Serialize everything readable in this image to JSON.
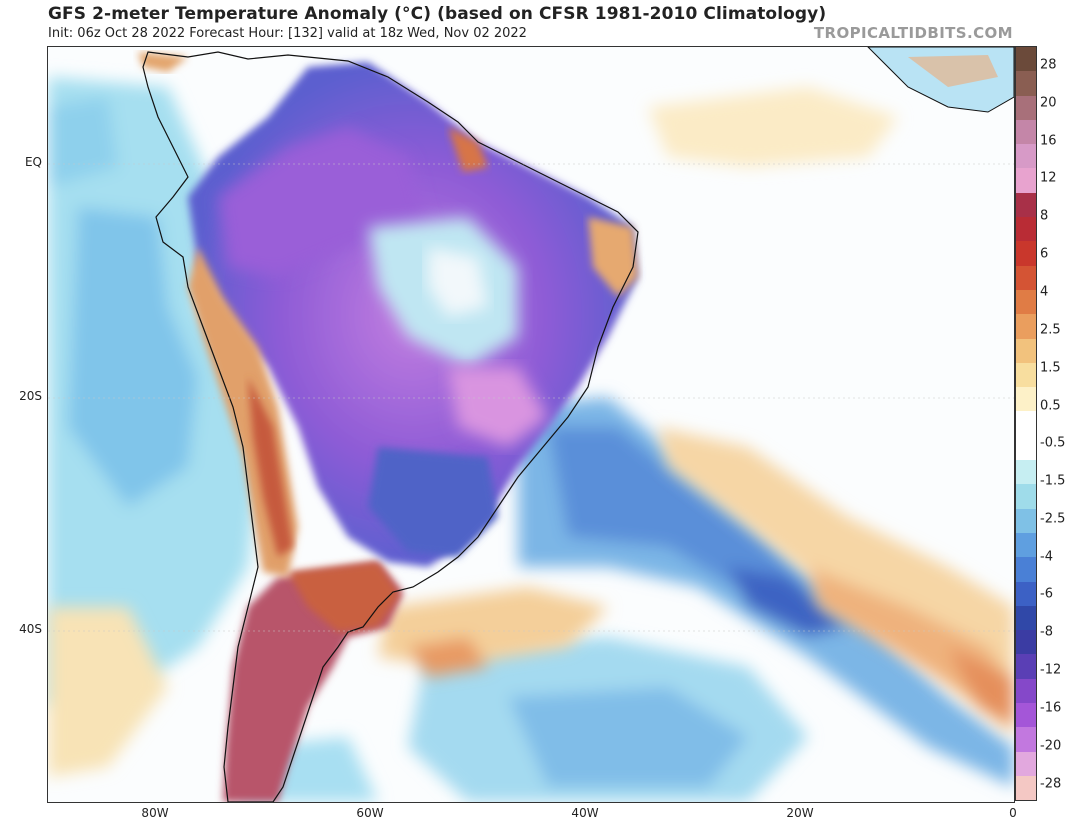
{
  "header": {
    "title": "GFS 2-meter Temperature Anomaly (°C) (based on CFSR 1981-2010 Climatology)",
    "subtitle": "Init: 06z Oct 28 2022   Forecast Hour: [132]   valid at 18z Wed, Nov 02 2022",
    "brand": "TROPICALTIDBITS.COM"
  },
  "axes": {
    "lat_labels": [
      "EQ",
      "20S",
      "40S"
    ],
    "lon_labels": [
      "80W",
      "60W",
      "40W",
      "20W",
      "0"
    ]
  },
  "colorbar": {
    "labels": [
      "28",
      "20",
      "16",
      "12",
      "8",
      "6",
      "4",
      "2.5",
      "1.5",
      "0.5",
      "-0.5",
      "-1.5",
      "-2.5",
      "-4",
      "-6",
      "-8",
      "-12",
      "-16",
      "-20",
      "-28"
    ],
    "colors": [
      "#6b4a3a",
      "#8a5e52",
      "#a8707a",
      "#c486a8",
      "#d79ac7",
      "#e8a3cf",
      "#a83048",
      "#b92c35",
      "#c9372c",
      "#d45434",
      "#e07c45",
      "#ea9e5e",
      "#f2c27d",
      "#f8de9f",
      "#fdf1c8",
      "#ffffff",
      "#ffffff",
      "#c6eef2",
      "#9fdcea",
      "#7fc1e6",
      "#5f9fe0",
      "#4a80d6",
      "#3c61c5",
      "#3048a8",
      "#3b3ca3",
      "#5a3fb5",
      "#8548c9",
      "#a456d8",
      "#c278df",
      "#e2a8de",
      "#f4c8c4"
    ]
  },
  "map": {
    "meridians": [
      "80W",
      "60W",
      "40W",
      "20W",
      "0"
    ],
    "parallels": [
      "EQ",
      "20S",
      "40S"
    ]
  }
}
